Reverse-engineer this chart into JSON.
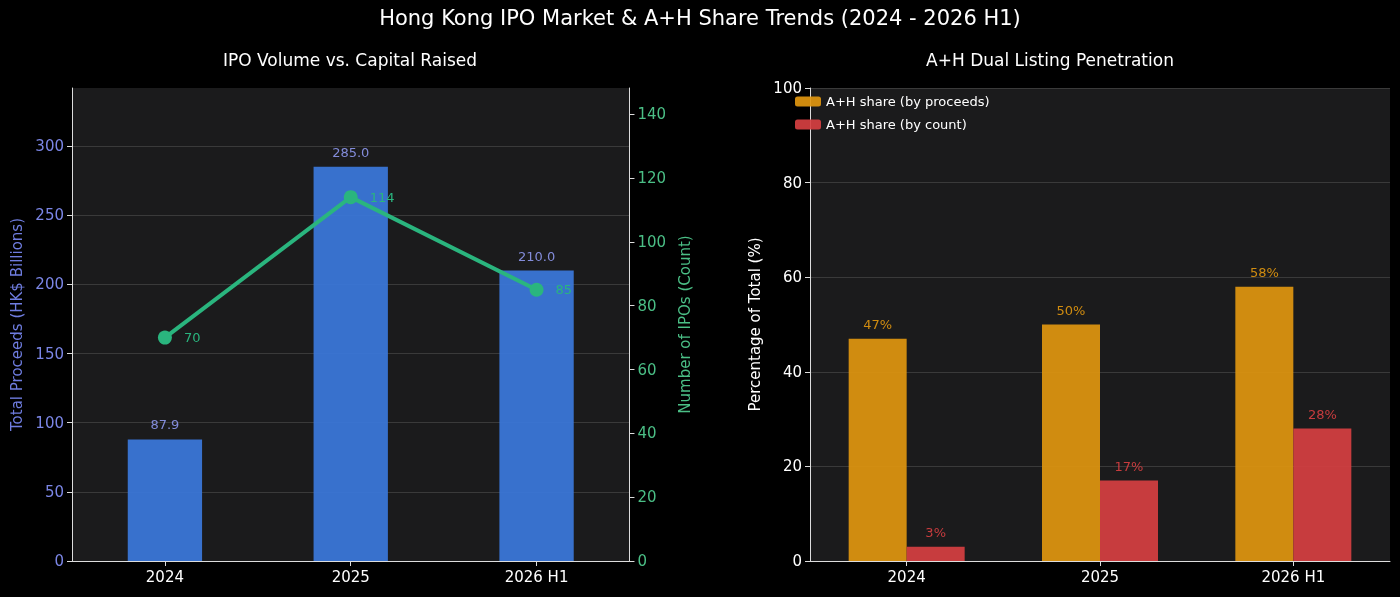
{
  "chart_data": [
    {
      "type": "bar",
      "title": "IPO Volume vs. Capital Raised",
      "annotations": [
        "Hong Kong IPO Market & A+H Share Trends (2024 - 2026 H1)"
      ],
      "ylabel": "Total Proceeds (HK$ Billions)",
      "y2label": "Number of IPOs (Count)",
      "categories": [
        "2024",
        "2025",
        "2026 H1"
      ],
      "series": [
        {
          "color": "#3b78dc",
          "values": [
            87.9,
            285.0,
            210.0
          ],
          "value_labels": [
            "87.9",
            "285.0",
            "210.0"
          ]
        },
        {
          "type": "line",
          "axis": "y2",
          "color": "#2ab57e",
          "values": [
            70,
            114,
            85
          ],
          "value_labels": [
            "70",
            "114",
            "85"
          ],
          "marker": "circle"
        }
      ],
      "ylim": [
        0,
        342
      ],
      "yticks": [
        0,
        50,
        100,
        150,
        200,
        250,
        300
      ],
      "y2lim": [
        0,
        148.2
      ],
      "y2ticks": [
        0,
        20,
        40,
        60,
        80,
        100,
        120,
        140
      ],
      "grid": "y"
    },
    {
      "type": "bar",
      "title": "A+H Dual Listing Penetration",
      "ylabel": "Percentage of Total (%)",
      "categories": [
        "2024",
        "2025",
        "2026 H1"
      ],
      "series": [
        {
          "name": "A+H share (by proceeds)",
          "color": "#e0960f",
          "values": [
            47,
            50,
            58
          ],
          "value_labels": [
            "47%",
            "50%",
            "58%"
          ]
        },
        {
          "name": "A+H share (by count)",
          "color": "#d63f41",
          "values": [
            3,
            17,
            28
          ],
          "value_labels": [
            "3%",
            "17%",
            "28%"
          ]
        }
      ],
      "ylim": [
        0,
        100
      ],
      "yticks": [
        0,
        20,
        40,
        60,
        80,
        100
      ],
      "grid": "y",
      "legend": "top left"
    }
  ]
}
